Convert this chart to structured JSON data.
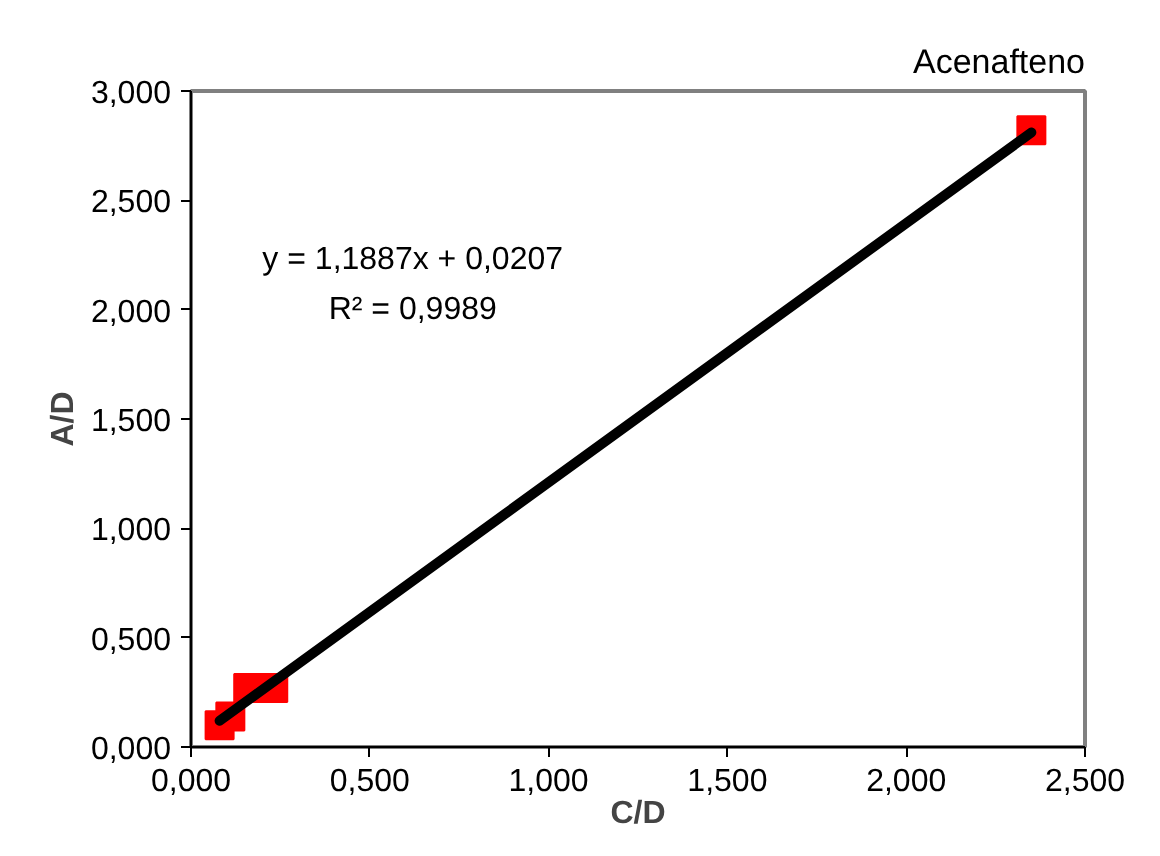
{
  "chart_data": {
    "type": "scatter",
    "title": "Acenafteno",
    "xlabel": "C/D",
    "ylabel": "A/D",
    "xlim": [
      0,
      2.5
    ],
    "xticks": [
      {
        "value": 0,
        "label": "0,000"
      },
      {
        "value": 0.5,
        "label": "0,500"
      },
      {
        "value": 1,
        "label": "1,000"
      },
      {
        "value": 1.5,
        "label": "1,500"
      },
      {
        "value": 2,
        "label": "2,000"
      },
      {
        "value": 2.5,
        "label": "2,500"
      }
    ],
    "ylim": [
      0,
      3
    ],
    "yticks": [
      {
        "value": 0,
        "label": "0,000"
      },
      {
        "value": 0.5,
        "label": "0,500"
      },
      {
        "value": 1,
        "label": "1,000"
      },
      {
        "value": 1.5,
        "label": "1,500"
      },
      {
        "value": 2,
        "label": "2,000"
      },
      {
        "value": 2.5,
        "label": "2,500"
      },
      {
        "value": 3,
        "label": "3,000"
      }
    ],
    "grid": false,
    "series": [
      {
        "color": "#ff0000",
        "marker": "square",
        "x": [
          0.08,
          0.11,
          0.16,
          0.23,
          2.35
        ],
        "values": [
          0.1,
          0.14,
          0.27,
          0.27,
          2.82
        ]
      },
      {
        "type": "line",
        "color": "#000000",
        "x": [
          0.08,
          2.35
        ],
        "values": [
          0.12,
          2.81
        ]
      }
    ],
    "annotations": [
      "y = 1,1887x + 0,0207\nR² = 0,9989"
    ]
  }
}
